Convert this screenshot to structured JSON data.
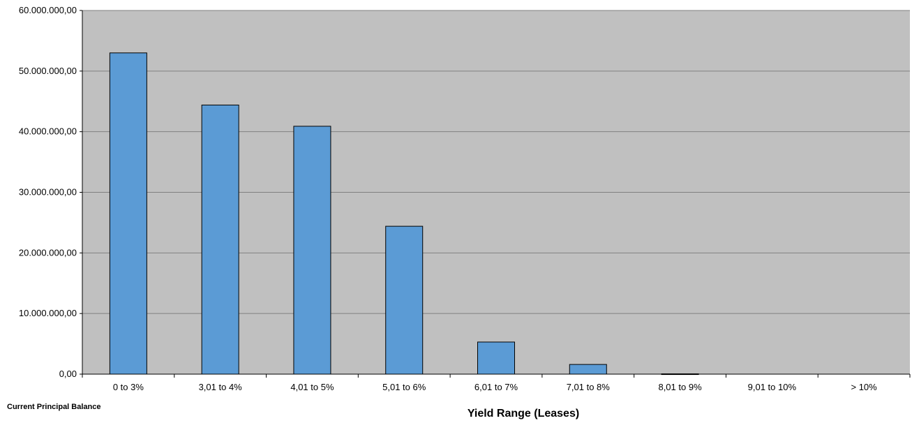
{
  "chart_data": {
    "type": "bar",
    "categories": [
      "0 to 3%",
      "3,01 to 4%",
      "4,01 to 5%",
      "5,01 to 6%",
      "6,01 to 7%",
      "7,01 to 8%",
      "8,01 to 9%",
      "9,01 to 10%",
      "> 10%"
    ],
    "values": [
      53000000,
      44400000,
      40900000,
      24400000,
      5300000,
      1600000,
      50000,
      0,
      0
    ],
    "ylim": [
      0,
      60000000
    ],
    "yticks": [
      0,
      10000000,
      20000000,
      30000000,
      40000000,
      50000000,
      60000000
    ],
    "ytick_labels": [
      "0,00",
      "10.000.000,00",
      "20.000.000,00",
      "30.000.000,00",
      "40.000.000,00",
      "50.000.000,00",
      "60.000.000,00"
    ],
    "xlabel": "Yield Range (Leases)",
    "ylabel": "Current Principal  Balance",
    "grid": true,
    "legend": "none",
    "colors": {
      "bar": "#5b9bd5",
      "plot_bg": "#c0c0c0",
      "gridline": "#808080"
    }
  }
}
